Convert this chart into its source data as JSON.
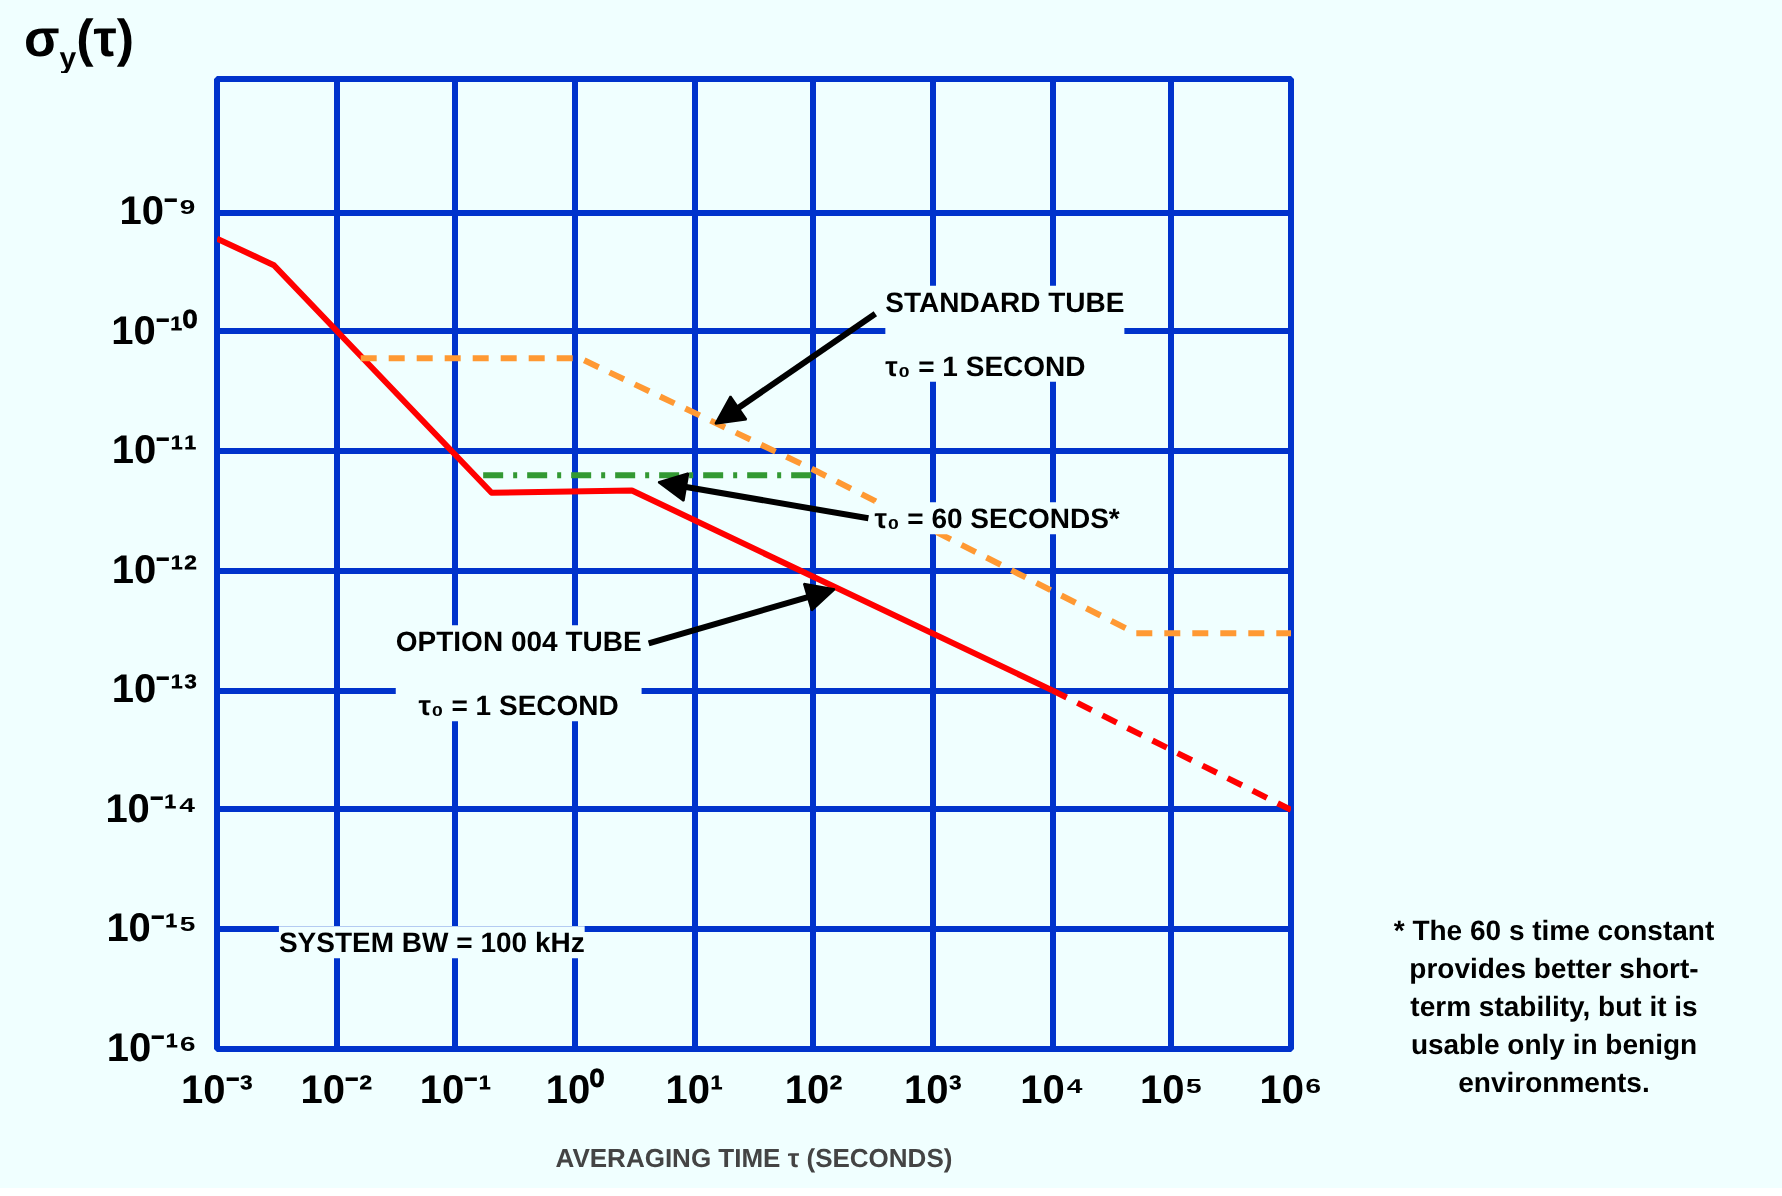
{
  "chart_data": {
    "type": "line",
    "xlabel": "AVERAGING TIME τ (SECONDS)",
    "ylabel": "σ$_{y}$(τ)",
    "log": "xy",
    "grid": true,
    "marker": "none",
    "xlim": [
      0.001,
      1000000
    ],
    "ylim": [
      1e-16,
      1.3e-08
    ],
    "xticks": [
      {
        "value": 0.001,
        "label": "10⁻³"
      },
      {
        "value": 0.01,
        "label": "10⁻²"
      },
      {
        "value": 0.1,
        "label": "10⁻¹"
      },
      {
        "value": 1,
        "label": "10⁰"
      },
      {
        "value": 10,
        "label": "10¹"
      },
      {
        "value": 100,
        "label": "10²"
      },
      {
        "value": 1000,
        "label": "10³"
      },
      {
        "value": 10000,
        "label": "10⁴"
      },
      {
        "value": 100000,
        "label": "10⁵"
      },
      {
        "value": 1000000,
        "label": "10⁶"
      }
    ],
    "yticks": [
      {
        "value": 1e-16,
        "label": "10⁻¹⁶"
      },
      {
        "value": 1e-15,
        "label": "10⁻¹⁵"
      },
      {
        "value": 1e-14,
        "label": "10⁻¹⁴"
      },
      {
        "value": 1e-13,
        "label": "10⁻¹³"
      },
      {
        "value": 1e-12,
        "label": "10⁻¹²"
      },
      {
        "value": 1e-11,
        "label": "10⁻¹¹"
      },
      {
        "value": 1e-10,
        "label": "10⁻¹⁰"
      },
      {
        "value": 1e-09,
        "label": "10⁻⁹"
      }
    ],
    "series": [
      {
        "color": "#ff0000",
        "line_style": "solid",
        "x": [
          0.001,
          0.003,
          0.2,
          3,
          10000
        ],
        "values": [
          6e-10,
          3.6e-10,
          4.5e-12,
          4.7e-12,
          1e-13
        ]
      },
      {
        "color": "#ff0000",
        "line_style": "dashed",
        "x": [
          10000,
          1000000
        ],
        "values": [
          1e-13,
          1e-14
        ]
      },
      {
        "color": "#ff9933",
        "line_style": "dashed",
        "x": [
          0.016,
          1.1,
          100,
          50000,
          1000000
        ],
        "values": [
          6e-11,
          6e-11,
          7e-12,
          3e-13,
          3e-13
        ]
      },
      {
        "color": "#339933",
        "line_style": "dashdot",
        "x": [
          0.17,
          100
        ],
        "values": [
          6.3e-12,
          6.3e-12
        ]
      }
    ],
    "annotations": [
      {
        "text": "STANDARD TUBE\nτ₀ = 1 SECOND",
        "x": 15,
        "y": 1.7e-11
      },
      {
        "text": "τ₀ = 60 SECONDS*",
        "x": 5,
        "y": 5.5e-12
      },
      {
        "text": "OPTION 004 TUBE\nτ₀ = 1 SECOND",
        "x": 150,
        "y": 7e-13
      },
      "SYSTEM BW = 100 kHz",
      "* The 60 s time constant\nprovides better short-\nterm stability, but it is\nusable only in benign\nenvironments."
    ]
  }
}
